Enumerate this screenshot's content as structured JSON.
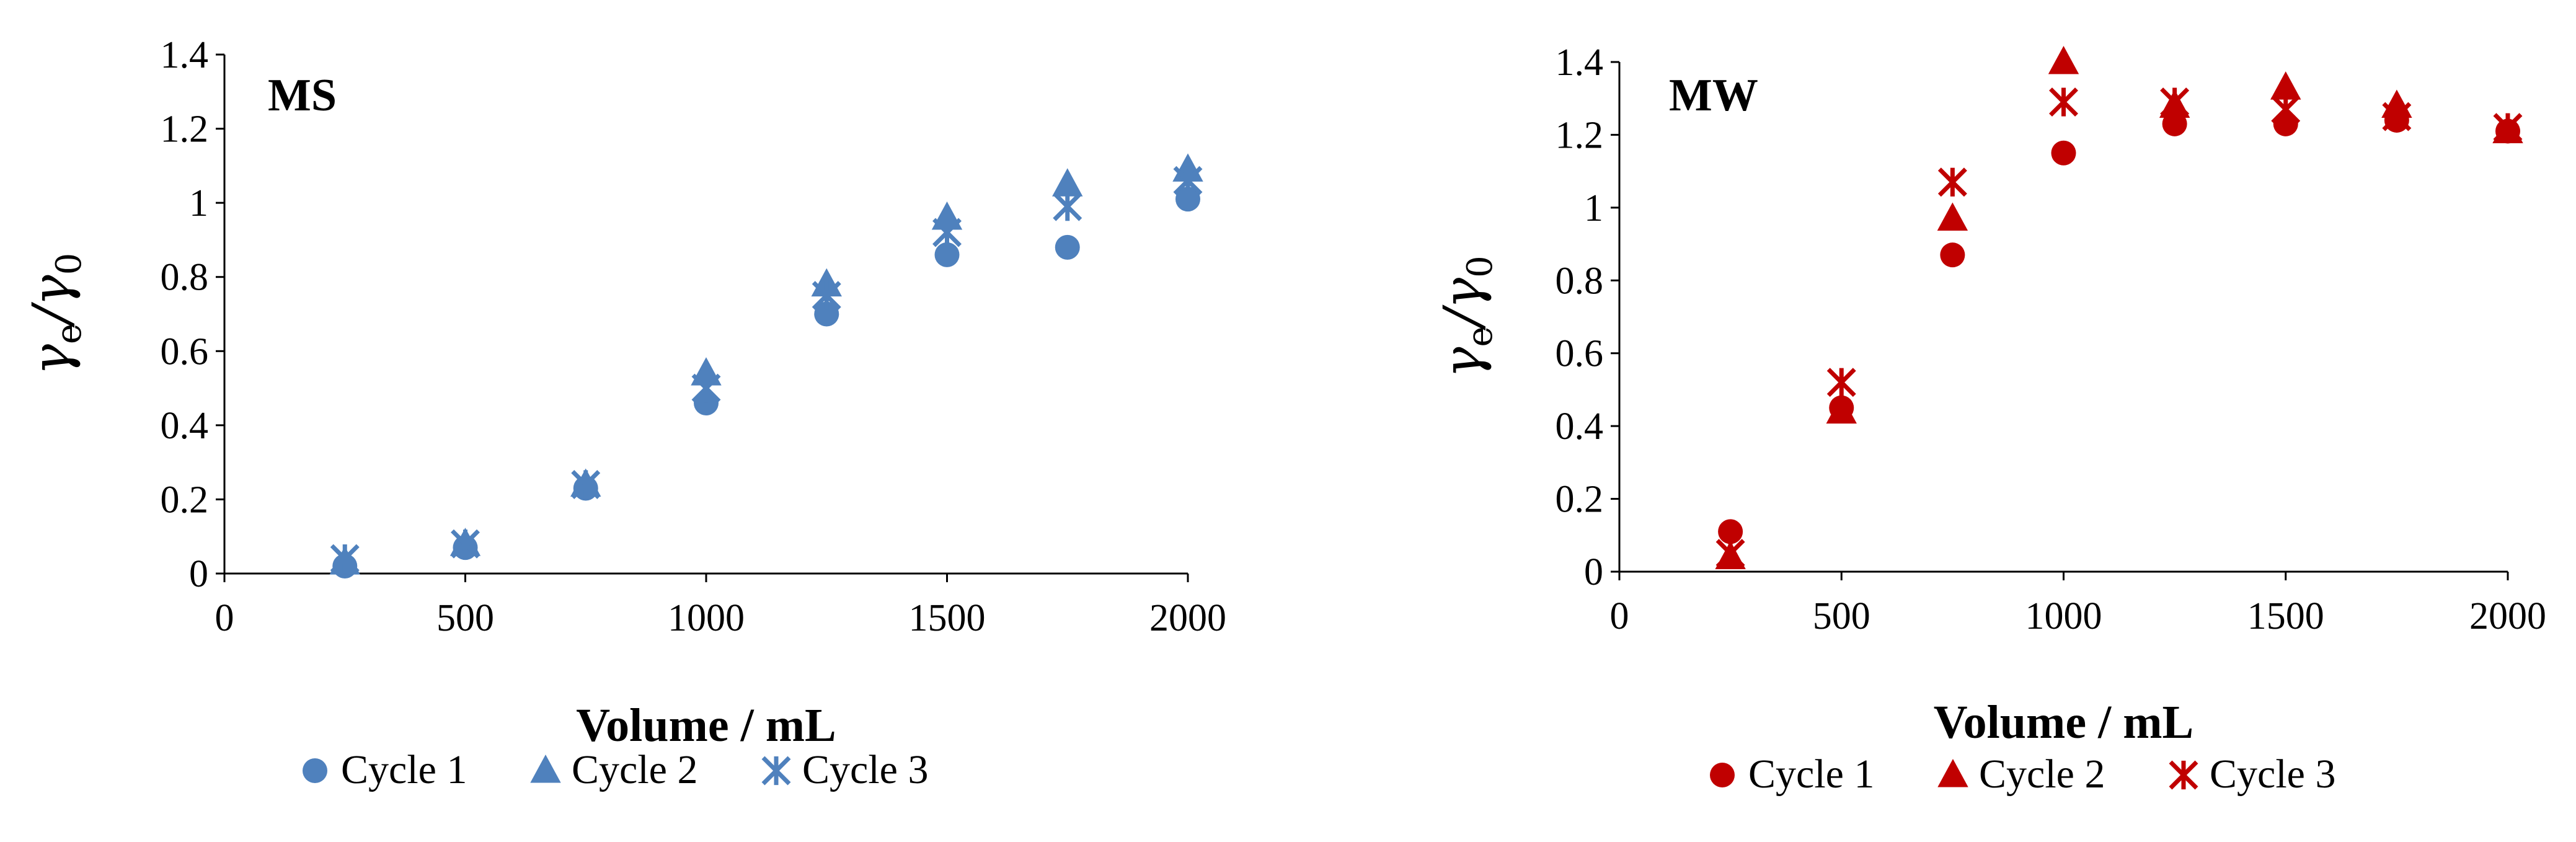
{
  "chart_data": [
    {
      "type": "scatter",
      "panel_label": "MS",
      "color": "#4f81bd",
      "xlabel": "Volume / mL",
      "ylabel_main": "γ",
      "ylabel_sub_num": "e",
      "ylabel_slash": "/",
      "ylabel_sub_den": "0",
      "xlim": [
        0,
        2000
      ],
      "ylim": [
        0,
        1.4
      ],
      "xticks": [
        "0",
        "500",
        "1000",
        "1500",
        "2000"
      ],
      "yticks": [
        "0",
        "0.2",
        "0.4",
        "0.6",
        "0.8",
        "1",
        "1.2",
        "1.4"
      ],
      "legend_position": "bottom",
      "series": [
        {
          "name": "Cycle 1",
          "marker": "circle",
          "x": [
            250,
            500,
            750,
            1000,
            1250,
            1500,
            1750,
            2000
          ],
          "y": [
            0.02,
            0.07,
            0.23,
            0.46,
            0.7,
            0.86,
            0.88,
            1.01
          ]
        },
        {
          "name": "Cycle 2",
          "marker": "triangle",
          "x": [
            250,
            500,
            750,
            1000,
            1250,
            1500,
            1750,
            2000
          ],
          "y": [
            0.03,
            0.08,
            0.24,
            0.54,
            0.78,
            0.96,
            1.05,
            1.09
          ]
        },
        {
          "name": "Cycle 3",
          "marker": "asterisk",
          "x": [
            250,
            500,
            750,
            1000,
            1250,
            1500,
            1750,
            2000
          ],
          "y": [
            0.04,
            0.08,
            0.24,
            0.5,
            0.75,
            0.92,
            0.99,
            1.06
          ]
        }
      ]
    },
    {
      "type": "scatter",
      "panel_label": "MW",
      "color": "#c00000",
      "xlabel": "Volume / mL",
      "ylabel_main": "γ",
      "ylabel_sub_num": "e",
      "ylabel_slash": "/",
      "ylabel_sub_den": "0",
      "xlim": [
        0,
        2000
      ],
      "ylim": [
        0,
        1.4
      ],
      "xticks": [
        "0",
        "500",
        "1000",
        "1500",
        "2000"
      ],
      "yticks": [
        "0",
        "0.2",
        "0.4",
        "0.6",
        "0.8",
        "1",
        "1.2",
        "1.4"
      ],
      "legend_position": "bottom",
      "series": [
        {
          "name": "Cycle 1",
          "marker": "circle",
          "x": [
            250,
            500,
            750,
            1000,
            1250,
            1500,
            1750,
            2000
          ],
          "y": [
            0.11,
            0.45,
            0.87,
            1.15,
            1.23,
            1.23,
            1.24,
            1.21
          ]
        },
        {
          "name": "Cycle 2",
          "marker": "triangle",
          "x": [
            250,
            500,
            750,
            1000,
            1250,
            1500,
            1750,
            2000
          ],
          "y": [
            0.04,
            0.44,
            0.97,
            1.4,
            1.28,
            1.33,
            1.28,
            1.21
          ]
        },
        {
          "name": "Cycle 3",
          "marker": "asterisk",
          "x": [
            250,
            500,
            750,
            1000,
            1250,
            1500,
            1750,
            2000
          ],
          "y": [
            0.05,
            0.52,
            1.07,
            1.29,
            1.29,
            1.27,
            1.25,
            1.22
          ]
        }
      ]
    }
  ]
}
